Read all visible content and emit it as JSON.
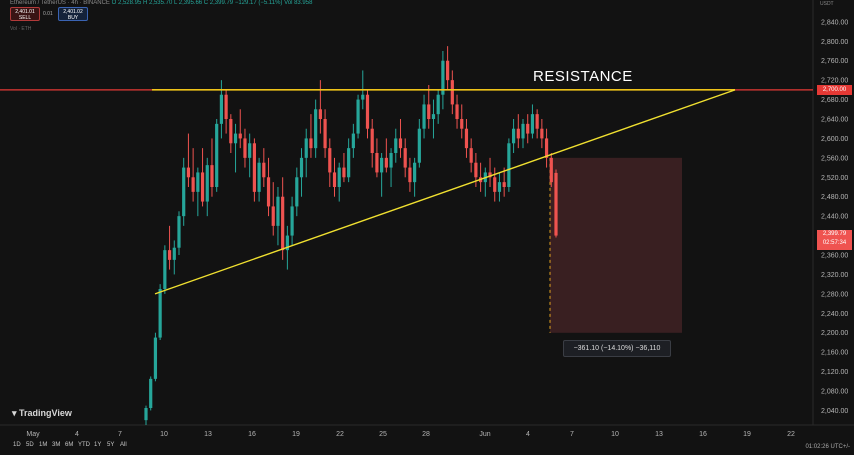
{
  "header": {
    "symbol_line": "Ethereum / TetherUS · 4h · BINANCE",
    "ohlc": "O 2,528.95  H 2,535.70  L 2,395.66  C 2,399.79  −129.17 (−5.11%)  Vol 83.958",
    "sell_price": "2,401.01",
    "sell_label": "SELL",
    "spread": "0.01",
    "buy_price": "2,401.02",
    "buy_label": "BUY",
    "sub": "Vol · ETH",
    "currency": "USDT"
  },
  "annotation": {
    "resistance": "RESISTANCE"
  },
  "measure_tooltip": "−361.10 (−14.10%) −36,110",
  "price_tags": {
    "resistance": "2,700.00",
    "last": "2,399.79",
    "countdown": "02:57:34"
  },
  "logo": "TradingView",
  "ranges": [
    "1D",
    "5D",
    "1M",
    "3M",
    "6M",
    "YTD",
    "1Y",
    "5Y",
    "All"
  ],
  "clock": "01:02:26 UTC+/-",
  "colors": {
    "up": "#26a69a",
    "down": "#ef5350",
    "resistance_line": "#f0c419",
    "red_line": "#e53935",
    "bg": "#121212"
  },
  "chart_data": {
    "type": "candlestick",
    "y_axis": {
      "ticks": [
        2040,
        2080,
        2120,
        2160,
        2200,
        2240,
        2280,
        2320,
        2360,
        2400,
        2440,
        2480,
        2520,
        2560,
        2600,
        2640,
        2680,
        2720,
        2760,
        2800,
        2840
      ],
      "ylim": [
        2010,
        2885
      ]
    },
    "x_axis": {
      "labels": [
        "May",
        "4",
        "7",
        "10",
        "13",
        "16",
        "19",
        "22",
        "25",
        "28",
        "Jun",
        "4",
        "7",
        "10",
        "13",
        "16",
        "19",
        "22"
      ]
    },
    "horizontal_line": 2700,
    "resistance_level": 2700,
    "ascending_support": [
      [
        0,
        2280
      ],
      [
        122,
        2700
      ]
    ],
    "measure": {
      "from": 2560,
      "to": 2199.8,
      "change": -361.1,
      "percent": -14.1
    },
    "candles": [
      {
        "o": 2020,
        "h": 2050,
        "l": 2010,
        "c": 2045
      },
      {
        "o": 2045,
        "h": 2110,
        "l": 2040,
        "c": 2105
      },
      {
        "o": 2105,
        "h": 2200,
        "l": 2100,
        "c": 2190
      },
      {
        "o": 2190,
        "h": 2300,
        "l": 2185,
        "c": 2290
      },
      {
        "o": 2290,
        "h": 2380,
        "l": 2280,
        "c": 2370
      },
      {
        "o": 2370,
        "h": 2420,
        "l": 2330,
        "c": 2350
      },
      {
        "o": 2350,
        "h": 2390,
        "l": 2320,
        "c": 2375
      },
      {
        "o": 2375,
        "h": 2450,
        "l": 2360,
        "c": 2440
      },
      {
        "o": 2440,
        "h": 2560,
        "l": 2420,
        "c": 2540
      },
      {
        "o": 2540,
        "h": 2610,
        "l": 2500,
        "c": 2520
      },
      {
        "o": 2520,
        "h": 2580,
        "l": 2470,
        "c": 2490
      },
      {
        "o": 2490,
        "h": 2540,
        "l": 2440,
        "c": 2530
      },
      {
        "o": 2530,
        "h": 2580,
        "l": 2460,
        "c": 2470
      },
      {
        "o": 2470,
        "h": 2560,
        "l": 2440,
        "c": 2545
      },
      {
        "o": 2545,
        "h": 2600,
        "l": 2480,
        "c": 2500
      },
      {
        "o": 2500,
        "h": 2640,
        "l": 2490,
        "c": 2630
      },
      {
        "o": 2630,
        "h": 2720,
        "l": 2600,
        "c": 2690
      },
      {
        "o": 2690,
        "h": 2700,
        "l": 2610,
        "c": 2640
      },
      {
        "o": 2640,
        "h": 2650,
        "l": 2570,
        "c": 2590
      },
      {
        "o": 2590,
        "h": 2630,
        "l": 2530,
        "c": 2610
      },
      {
        "o": 2610,
        "h": 2660,
        "l": 2580,
        "c": 2600
      },
      {
        "o": 2600,
        "h": 2620,
        "l": 2540,
        "c": 2560
      },
      {
        "o": 2560,
        "h": 2610,
        "l": 2520,
        "c": 2590
      },
      {
        "o": 2590,
        "h": 2600,
        "l": 2470,
        "c": 2490
      },
      {
        "o": 2490,
        "h": 2560,
        "l": 2470,
        "c": 2550
      },
      {
        "o": 2550,
        "h": 2580,
        "l": 2500,
        "c": 2520
      },
      {
        "o": 2520,
        "h": 2560,
        "l": 2440,
        "c": 2460
      },
      {
        "o": 2460,
        "h": 2510,
        "l": 2400,
        "c": 2420
      },
      {
        "o": 2420,
        "h": 2500,
        "l": 2380,
        "c": 2480
      },
      {
        "o": 2480,
        "h": 2520,
        "l": 2350,
        "c": 2370
      },
      {
        "o": 2370,
        "h": 2420,
        "l": 2330,
        "c": 2400
      },
      {
        "o": 2400,
        "h": 2480,
        "l": 2380,
        "c": 2460
      },
      {
        "o": 2460,
        "h": 2540,
        "l": 2440,
        "c": 2520
      },
      {
        "o": 2520,
        "h": 2580,
        "l": 2480,
        "c": 2560
      },
      {
        "o": 2560,
        "h": 2620,
        "l": 2520,
        "c": 2600
      },
      {
        "o": 2600,
        "h": 2650,
        "l": 2560,
        "c": 2580
      },
      {
        "o": 2580,
        "h": 2680,
        "l": 2560,
        "c": 2660
      },
      {
        "o": 2660,
        "h": 2720,
        "l": 2610,
        "c": 2640
      },
      {
        "o": 2640,
        "h": 2660,
        "l": 2560,
        "c": 2580
      },
      {
        "o": 2580,
        "h": 2600,
        "l": 2500,
        "c": 2530
      },
      {
        "o": 2530,
        "h": 2560,
        "l": 2480,
        "c": 2500
      },
      {
        "o": 2500,
        "h": 2550,
        "l": 2470,
        "c": 2540
      },
      {
        "o": 2540,
        "h": 2570,
        "l": 2510,
        "c": 2520
      },
      {
        "o": 2520,
        "h": 2600,
        "l": 2510,
        "c": 2580
      },
      {
        "o": 2580,
        "h": 2630,
        "l": 2560,
        "c": 2610
      },
      {
        "o": 2610,
        "h": 2690,
        "l": 2600,
        "c": 2680
      },
      {
        "o": 2680,
        "h": 2740,
        "l": 2660,
        "c": 2690
      },
      {
        "o": 2690,
        "h": 2700,
        "l": 2600,
        "c": 2620
      },
      {
        "o": 2620,
        "h": 2640,
        "l": 2540,
        "c": 2570
      },
      {
        "o": 2570,
        "h": 2600,
        "l": 2520,
        "c": 2530
      },
      {
        "o": 2530,
        "h": 2570,
        "l": 2480,
        "c": 2560
      },
      {
        "o": 2560,
        "h": 2600,
        "l": 2530,
        "c": 2540
      },
      {
        "o": 2540,
        "h": 2580,
        "l": 2500,
        "c": 2570
      },
      {
        "o": 2570,
        "h": 2620,
        "l": 2550,
        "c": 2600
      },
      {
        "o": 2600,
        "h": 2640,
        "l": 2560,
        "c": 2580
      },
      {
        "o": 2580,
        "h": 2600,
        "l": 2520,
        "c": 2540
      },
      {
        "o": 2540,
        "h": 2560,
        "l": 2490,
        "c": 2510
      },
      {
        "o": 2510,
        "h": 2560,
        "l": 2480,
        "c": 2550
      },
      {
        "o": 2550,
        "h": 2640,
        "l": 2540,
        "c": 2620
      },
      {
        "o": 2620,
        "h": 2690,
        "l": 2600,
        "c": 2670
      },
      {
        "o": 2670,
        "h": 2710,
        "l": 2620,
        "c": 2640
      },
      {
        "o": 2640,
        "h": 2680,
        "l": 2600,
        "c": 2650
      },
      {
        "o": 2650,
        "h": 2700,
        "l": 2630,
        "c": 2690
      },
      {
        "o": 2690,
        "h": 2780,
        "l": 2660,
        "c": 2760
      },
      {
        "o": 2760,
        "h": 2790,
        "l": 2700,
        "c": 2720
      },
      {
        "o": 2720,
        "h": 2740,
        "l": 2650,
        "c": 2670
      },
      {
        "o": 2670,
        "h": 2690,
        "l": 2620,
        "c": 2640
      },
      {
        "o": 2640,
        "h": 2670,
        "l": 2600,
        "c": 2620
      },
      {
        "o": 2620,
        "h": 2640,
        "l": 2560,
        "c": 2580
      },
      {
        "o": 2580,
        "h": 2600,
        "l": 2530,
        "c": 2550
      },
      {
        "o": 2550,
        "h": 2570,
        "l": 2500,
        "c": 2520
      },
      {
        "o": 2520,
        "h": 2550,
        "l": 2490,
        "c": 2510
      },
      {
        "o": 2510,
        "h": 2540,
        "l": 2480,
        "c": 2530
      },
      {
        "o": 2530,
        "h": 2560,
        "l": 2500,
        "c": 2520
      },
      {
        "o": 2520,
        "h": 2540,
        "l": 2470,
        "c": 2490
      },
      {
        "o": 2490,
        "h": 2530,
        "l": 2470,
        "c": 2510
      },
      {
        "o": 2510,
        "h": 2540,
        "l": 2480,
        "c": 2500
      },
      {
        "o": 2500,
        "h": 2600,
        "l": 2490,
        "c": 2590
      },
      {
        "o": 2590,
        "h": 2640,
        "l": 2570,
        "c": 2620
      },
      {
        "o": 2620,
        "h": 2650,
        "l": 2580,
        "c": 2600
      },
      {
        "o": 2600,
        "h": 2640,
        "l": 2580,
        "c": 2630
      },
      {
        "o": 2630,
        "h": 2650,
        "l": 2590,
        "c": 2610
      },
      {
        "o": 2610,
        "h": 2670,
        "l": 2600,
        "c": 2650
      },
      {
        "o": 2650,
        "h": 2660,
        "l": 2600,
        "c": 2620
      },
      {
        "o": 2620,
        "h": 2640,
        "l": 2580,
        "c": 2600
      },
      {
        "o": 2600,
        "h": 2620,
        "l": 2540,
        "c": 2560
      },
      {
        "o": 2560,
        "h": 2570,
        "l": 2500,
        "c": 2510
      },
      {
        "o": 2529,
        "h": 2536,
        "l": 2396,
        "c": 2400
      }
    ],
    "candle_x_start": 0,
    "candle_x_step": 1.3636
  }
}
